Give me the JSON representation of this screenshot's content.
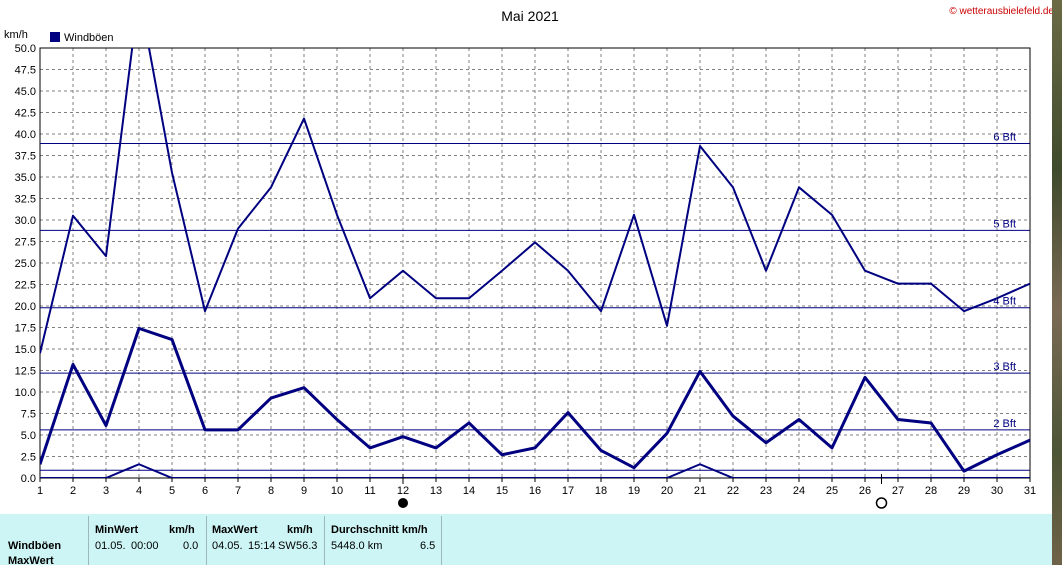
{
  "copyright": "© wetterausbielefeld.de",
  "chart_data": {
    "type": "line",
    "title": "Mai 2021",
    "ylabel": "km/h",
    "legend": "Windböen",
    "legend_placement": "top-left",
    "ylim": [
      0,
      50
    ],
    "grid": true,
    "colors": {
      "series": "#000080",
      "grid": "#808080"
    },
    "x": [
      1,
      2,
      3,
      4,
      5,
      6,
      7,
      8,
      9,
      10,
      11,
      12,
      13,
      14,
      15,
      16,
      17,
      18,
      19,
      20,
      21,
      22,
      23,
      24,
      25,
      26,
      27,
      28,
      29,
      30,
      31
    ],
    "x_tick_labels": [
      "1",
      "2",
      "3",
      "4",
      "5",
      "6",
      "7",
      "8",
      "9",
      "10",
      "11",
      "12",
      "13",
      "14",
      "15",
      "16",
      "17",
      "18",
      "19",
      "20",
      "21",
      "22",
      "23",
      "24",
      "25",
      "26",
      "27",
      "28",
      "29",
      "30",
      "31"
    ],
    "y_tick_labels": [
      "0.0",
      "2.5",
      "5.0",
      "7.5",
      "10.0",
      "12.5",
      "15.0",
      "17.5",
      "20.0",
      "22.5",
      "25.0",
      "27.5",
      "30.0",
      "32.5",
      "35.0",
      "37.5",
      "40.0",
      "42.5",
      "45.0",
      "47.5",
      "50.0"
    ],
    "series": [
      {
        "name": "Windböen",
        "style": "thin",
        "values": [
          14.5,
          30.5,
          25.8,
          56.3,
          35.5,
          19.4,
          29.0,
          33.8,
          41.8,
          30.6,
          20.9,
          24.1,
          20.9,
          20.9,
          24.1,
          27.4,
          24.1,
          19.4,
          30.6,
          17.7,
          38.6,
          33.8,
          24.1,
          33.8,
          30.6,
          24.1,
          22.6,
          22.6,
          19.4,
          20.9,
          22.6
        ]
      },
      {
        "style": "thick",
        "values": [
          1.6,
          13.2,
          6.1,
          17.4,
          16.1,
          5.6,
          5.6,
          9.3,
          10.5,
          6.8,
          3.5,
          4.8,
          3.5,
          6.4,
          2.7,
          3.5,
          7.6,
          3.2,
          1.2,
          5.2,
          12.4,
          7.2,
          4.1,
          6.8,
          3.5,
          11.7,
          6.8,
          6.4,
          0.8,
          2.7,
          4.4
        ]
      },
      {
        "style": "thin",
        "values": [
          0,
          0,
          0,
          1.6,
          0,
          0,
          0,
          0,
          0,
          0,
          0,
          0,
          0,
          0,
          0,
          0,
          0,
          0,
          0,
          0,
          1.6,
          0,
          0,
          0,
          0,
          0,
          0,
          0,
          0,
          0,
          0
        ]
      }
    ],
    "reference_lines": [
      {
        "label": "",
        "value": 0.9
      },
      {
        "label": "2 Bft",
        "value": 5.6
      },
      {
        "label": "3 Bft",
        "value": 12.2
      },
      {
        "label": "4 Bft",
        "value": 19.8
      },
      {
        "label": "5 Bft",
        "value": 28.8
      },
      {
        "label": "6 Bft",
        "value": 38.9
      }
    ],
    "moon_phases": [
      {
        "phase": "new-moon",
        "day": 12
      },
      {
        "phase": "full-moon",
        "day": 26.5
      }
    ]
  },
  "stats": {
    "headers": {
      "min": "MinWert",
      "min_unit": "km/h",
      "max": "MaxWert",
      "max_unit": "km/h",
      "avg": "Durchschnitt km/h"
    },
    "rows": [
      {
        "label": "Windböen",
        "min_date": "01.05.",
        "min_time": "00:00",
        "min_val": "0.0",
        "max_date": "04.05.",
        "max_time": "15:14",
        "max_dir": "SW",
        "max_val": "56.3",
        "avg_km": "5448.0 km",
        "avg_val": "6.5"
      },
      {
        "label": "MaxWert"
      }
    ]
  }
}
